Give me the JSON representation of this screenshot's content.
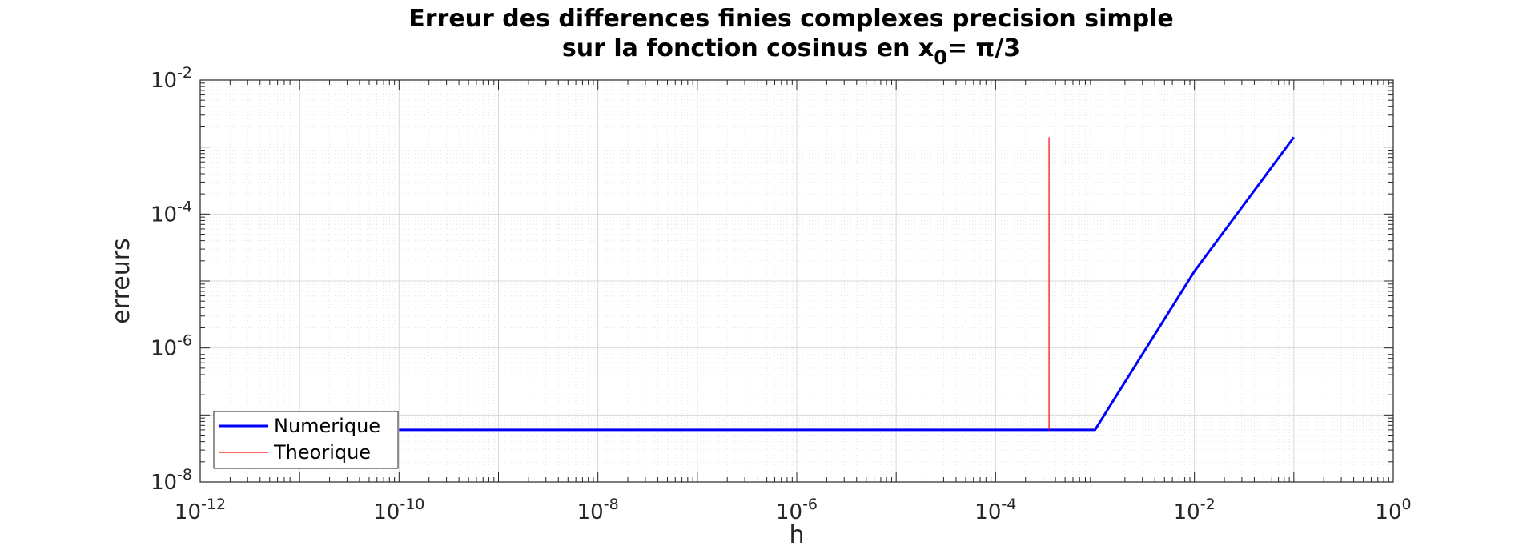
{
  "chart_data": {
    "type": "line",
    "title_line1": "Erreur des differences finies complexes precision simple",
    "title_line2_prefix": "sur la fonction cosinus en x",
    "title_line2_sub": "0",
    "title_line2_suffix": "= π/3",
    "xlabel": "h",
    "ylabel": "erreurs",
    "x_scale": "log",
    "y_scale": "log",
    "xlim": [
      1e-12,
      1
    ],
    "ylim": [
      1e-08,
      0.01
    ],
    "grid": true,
    "minor_grid": true,
    "legend_location": "bottom-left",
    "x_ticks": [
      {
        "base": "10",
        "exp": "-12",
        "value": 1e-12
      },
      {
        "base": "10",
        "exp": "-10",
        "value": 1e-10
      },
      {
        "base": "10",
        "exp": "-8",
        "value": 1e-08
      },
      {
        "base": "10",
        "exp": "-6",
        "value": 1e-06
      },
      {
        "base": "10",
        "exp": "-4",
        "value": 0.0001
      },
      {
        "base": "10",
        "exp": "-2",
        "value": 0.01
      },
      {
        "base": "10",
        "exp": "0",
        "value": 1
      }
    ],
    "y_ticks": [
      {
        "base": "10",
        "exp": "-2",
        "value": 0.01
      },
      {
        "base": "10",
        "exp": "-4",
        "value": 0.0001
      },
      {
        "base": "10",
        "exp": "-6",
        "value": 1e-06
      },
      {
        "base": "10",
        "exp": "-8",
        "value": 1e-08
      }
    ],
    "series": [
      {
        "name": "Numerique",
        "color": "#0000ff",
        "line_width": "thick",
        "x": [
          1e-10,
          0.001,
          0.01,
          0.1
        ],
        "y": [
          6e-08,
          6e-08,
          1.4e-05,
          0.0014
        ]
      },
      {
        "name": "Theorique",
        "color": "#ff0000",
        "line_width": "thin",
        "x": [
          0.000345,
          0.000345
        ],
        "y": [
          6e-08,
          0.0014
        ]
      }
    ]
  }
}
